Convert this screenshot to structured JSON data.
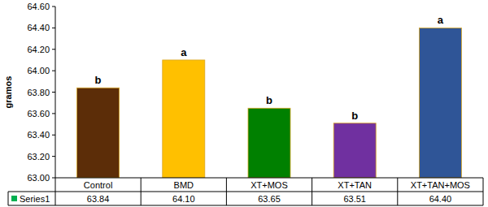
{
  "chart_data": {
    "type": "bar",
    "y_label": "gramos",
    "categories": [
      "Control",
      "BMD",
      "XT+MOS",
      "XT+TAN",
      "XT+TAN+MOS"
    ],
    "series": [
      {
        "name": "Series1",
        "color": "#00b050",
        "colors": [
          "#5c2d08",
          "#ffc000",
          "#008000",
          "#7030a0",
          "#2f5597"
        ],
        "values": [
          63.84,
          64.1,
          63.65,
          63.51,
          64.4
        ],
        "value_labels": [
          "63.84",
          "64.10",
          "63.65",
          "63.51",
          "64.40"
        ]
      }
    ],
    "annotations": [
      "b",
      "a",
      "b",
      "b",
      "a"
    ],
    "ylim": [
      63,
      64.6
    ],
    "yticks": [
      {
        "value": 63,
        "label": "63.00"
      },
      {
        "value": 63.2,
        "label": "63.20"
      },
      {
        "value": 63.4,
        "label": "63.40"
      },
      {
        "value": 63.6,
        "label": "63.60"
      },
      {
        "value": 63.8,
        "label": "63.80"
      },
      {
        "value": 64,
        "label": "64.00"
      },
      {
        "value": 64.2,
        "label": "64.20"
      },
      {
        "value": 64.4,
        "label": "64.40"
      },
      {
        "value": 64.6,
        "label": "64.60"
      }
    ],
    "grid": false,
    "data_labels": true
  }
}
